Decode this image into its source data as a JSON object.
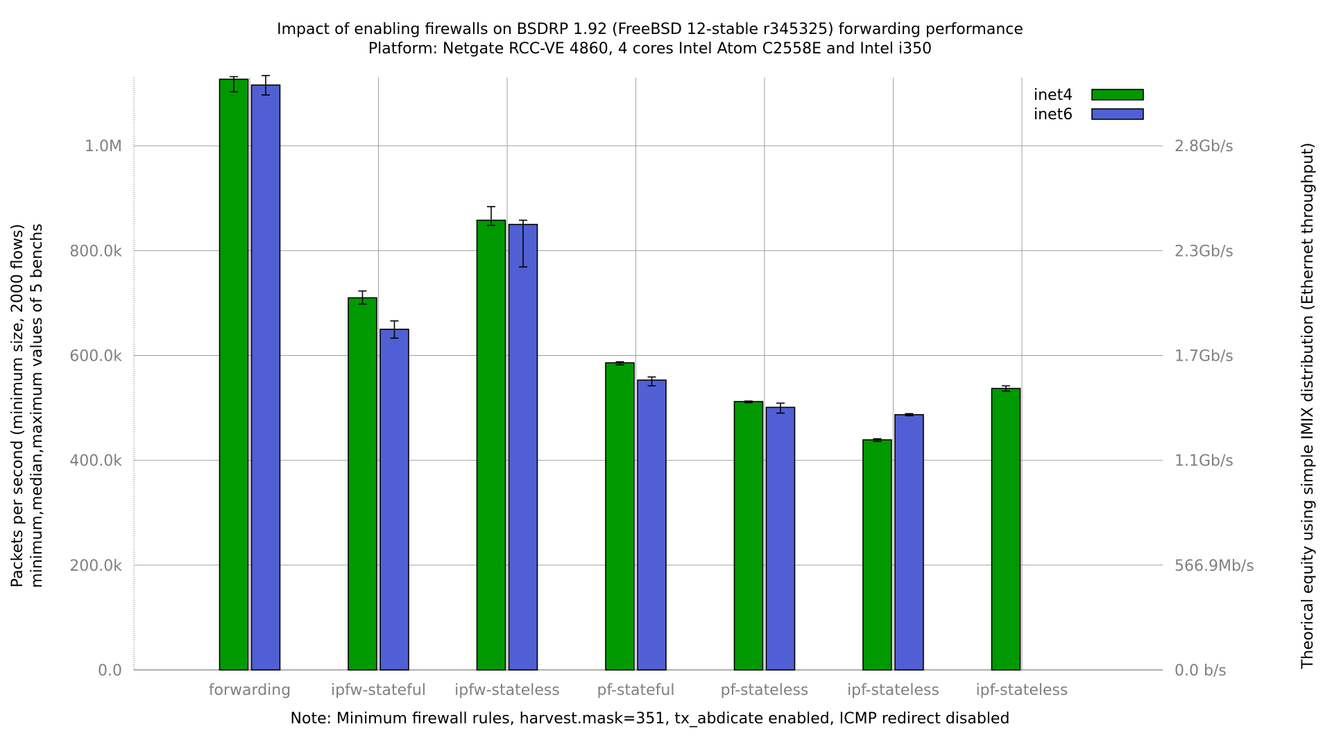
{
  "chart_data": {
    "type": "bar",
    "title": "Impact of enabling firewalls on BSDRP 1.92 (FreeBSD 12-stable r345325) forwarding performance",
    "subtitle": "Platform: Netgate RCC-VE 4860, 4 cores Intel Atom C2558E and Intel i350",
    "xlabel": "Note: Minimum firewall rules, harvest.mask=351, tx_abdicate enabled, ICMP redirect disabled",
    "ylabel_line1": "Packets per second (minimum size, 2000 flows)",
    "ylabel_line2": "minimum,median,maximum values of 5 benchs",
    "y2label": "Theorical equity using simple IMIX distribution (Ethernet throughput)",
    "ylim": [
      0,
      1130000
    ],
    "categories": [
      "forwarding",
      "ipfw-stateful",
      "ipfw-stateless",
      "pf-stateful",
      "pf-stateless",
      "ipf-stateless",
      "ipf-stateless"
    ],
    "yticks": [
      {
        "value": 0,
        "label": "0.0"
      },
      {
        "value": 200000,
        "label": "200.0k"
      },
      {
        "value": 400000,
        "label": "400.0k"
      },
      {
        "value": 600000,
        "label": "600.0k"
      },
      {
        "value": 800000,
        "label": "800.0k"
      },
      {
        "value": 1000000,
        "label": "1.0M"
      }
    ],
    "y2ticks": [
      {
        "value": 0,
        "label": "0.0 b/s"
      },
      {
        "value": 200000,
        "label": "566.9Mb/s"
      },
      {
        "value": 400000,
        "label": "1.1Gb/s"
      },
      {
        "value": 600000,
        "label": "1.7Gb/s"
      },
      {
        "value": 800000,
        "label": "2.3Gb/s"
      },
      {
        "value": 1000000,
        "label": "2.8Gb/s"
      }
    ],
    "series": [
      {
        "name": "inet4",
        "color": "#009900",
        "values": [
          1127000,
          710000,
          858000,
          586000,
          512000,
          439000,
          537000
        ],
        "min": [
          1103000,
          698000,
          848000,
          582000,
          510000,
          436000,
          532000
        ],
        "max": [
          1132000,
          723000,
          884000,
          588000,
          513000,
          441000,
          542000
        ]
      },
      {
        "name": "inet6",
        "color": "#5060d4",
        "values": [
          1116000,
          650000,
          850000,
          553000,
          501000,
          487000,
          null
        ],
        "min": [
          1097000,
          633000,
          769000,
          542000,
          490000,
          485000,
          null
        ],
        "max": [
          1134000,
          666000,
          858000,
          559000,
          509000,
          489000,
          null
        ]
      }
    ],
    "legend_position": "top-right",
    "grid": true
  }
}
